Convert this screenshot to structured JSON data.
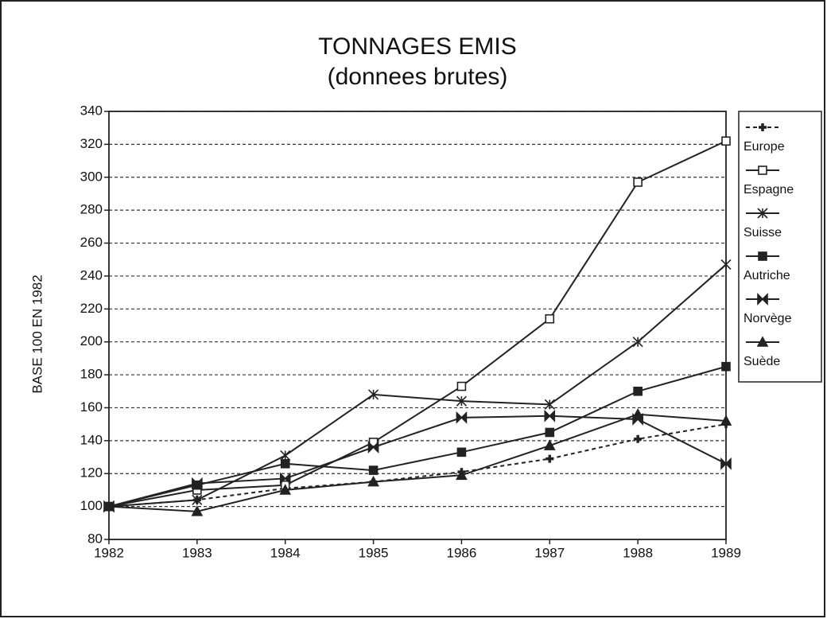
{
  "chart_data": {
    "type": "line",
    "title": "TONNAGES EMIS",
    "subtitle": "(donnees brutes)",
    "y_label": "BASE 100 EN 1982",
    "x": [
      1982,
      1983,
      1984,
      1985,
      1986,
      1987,
      1988,
      1989
    ],
    "xlim": [
      1982,
      1989
    ],
    "xticks": [
      1982,
      1983,
      1984,
      1985,
      1986,
      1987,
      1988,
      1989
    ],
    "ylim": [
      80,
      340
    ],
    "yticks": [
      80,
      100,
      120,
      140,
      160,
      180,
      200,
      220,
      240,
      260,
      280,
      300,
      320,
      340
    ],
    "grid": true,
    "legend": "right",
    "series": [
      {
        "name": "Europe",
        "color": "#222222",
        "marker": "plus",
        "dashed": true,
        "values": [
          100,
          104,
          111,
          115,
          121,
          129,
          141,
          150
        ]
      },
      {
        "name": "Espagne",
        "color": "#222222",
        "marker": "open-square",
        "values": [
          100,
          110,
          113,
          139,
          173,
          214,
          297,
          322
        ]
      },
      {
        "name": "Suisse",
        "color": "#222222",
        "marker": "asterisk",
        "values": [
          100,
          104,
          131,
          168,
          164,
          162,
          200,
          247
        ]
      },
      {
        "name": "Autriche",
        "color": "#222222",
        "marker": "square",
        "values": [
          100,
          113,
          126,
          122,
          133,
          145,
          170,
          185
        ]
      },
      {
        "name": "Norvège",
        "color": "#222222",
        "marker": "bowtie",
        "values": [
          100,
          114,
          117,
          136,
          154,
          155,
          153,
          126
        ]
      },
      {
        "name": "Suède",
        "color": "#222222",
        "marker": "triangle",
        "values": [
          100,
          97,
          110,
          115,
          119,
          137,
          156,
          152
        ]
      }
    ]
  }
}
